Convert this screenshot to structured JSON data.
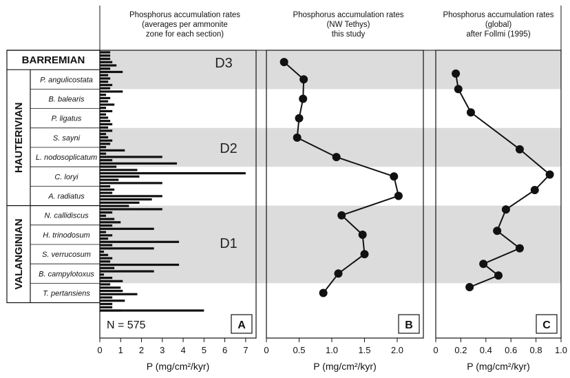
{
  "chart_data": [
    {
      "panel": "A",
      "type": "bar",
      "title_lines": [
        "Phosphorus accumulation rates",
        "(averages per ammonite",
        "zone for each section)"
      ],
      "xlabel": "P (mg/cm²/kyr)",
      "xlim": [
        0,
        7.5
      ],
      "xticks": [
        0,
        1,
        2,
        3,
        4,
        5,
        6,
        7
      ],
      "count_label": "N = 575",
      "panel_letter": "A",
      "values": [
        0.5,
        0.5,
        0.5,
        0.6,
        0.8,
        0.5,
        1.1,
        0.4,
        0.5,
        0.4,
        0.6,
        0.5,
        1.1,
        0.3,
        0.5,
        0.4,
        0.7,
        0.3,
        0.6,
        0.3,
        0.4,
        0.5,
        0.6,
        0.4,
        0.6,
        0.3,
        0.4,
        0.6,
        0.5,
        0.3,
        1.2,
        0.3,
        3.0,
        0.6,
        3.7,
        0.8,
        1.8,
        7.0,
        1.9,
        0.9,
        3.0,
        0.5,
        0.7,
        0.6,
        3.0,
        2.5,
        1.9,
        1.4,
        3.0,
        0.6,
        0.3,
        0.7,
        1.0,
        0.6,
        2.6,
        0.3,
        0.6,
        0.4,
        3.8,
        0.6,
        2.6,
        0.2,
        0.4,
        0.6,
        0.5,
        3.8,
        0.7,
        2.6,
        0.2,
        0.6,
        1.1,
        0.5,
        1.0,
        1.1,
        1.8,
        0.6,
        1.2,
        0.6,
        0.6,
        1.0,
        5.0
      ]
    },
    {
      "panel": "B",
      "type": "line",
      "title_lines": [
        "Phosphorus accumulation rates",
        "(NW Tethys)",
        "this study"
      ],
      "xlabel": "P (mg/cm²/kyr)",
      "xlim": [
        0,
        2.4
      ],
      "xticks": [
        "0",
        "0.5",
        "1.0",
        "1.5",
        "2.0"
      ],
      "panel_letter": "B",
      "y_zone": [
        "Barremian",
        "P. angulicostata",
        "B. balearis",
        "P. ligatus",
        "S. sayni",
        "L. nodosoplicatum",
        "C. loryi",
        "A. radiatus",
        "N. callidiscus",
        "H. trinodosum",
        "S. verrucosum",
        "B. campylotoxus",
        "T. pertansiens"
      ],
      "values": [
        0.27,
        0.57,
        0.56,
        0.5,
        0.47,
        1.07,
        1.95,
        2.02,
        1.15,
        1.47,
        1.5,
        1.1,
        0.87
      ]
    },
    {
      "panel": "C",
      "type": "line",
      "title_lines": [
        "Phosphorus accumulation rates",
        "(global)",
        "after Follmi (1995)"
      ],
      "xlabel": "P (mg/cm²/kyr)",
      "xlim": [
        0,
        1.0
      ],
      "xticks": [
        "0",
        "0.2",
        "0.4",
        "0.6",
        "0.8",
        "1.0"
      ],
      "panel_letter": "C",
      "y_zone": [
        "P. angulicostata",
        "B. balearis",
        "P. ligatus",
        "S. sayni",
        "C. loryi",
        "A. radiatus",
        "N. callidiscus",
        "H. trinodosum",
        "S. verrucosum",
        "B. campylotoxus",
        "B. campylotoxus (lower)",
        "T. pertansiens"
      ],
      "y_index": [
        1.2,
        2.0,
        3.2,
        5.1,
        6.4,
        7.2,
        8.2,
        9.3,
        10.2,
        11.0,
        11.6,
        12.2
      ],
      "values": [
        0.16,
        0.18,
        0.28,
        0.67,
        0.91,
        0.79,
        0.56,
        0.49,
        0.67,
        0.38,
        0.5,
        0.27
      ]
    }
  ],
  "stratigraphy": {
    "stages": [
      {
        "name": "BARREMIAN",
        "from": 0,
        "to": 1
      },
      {
        "name": "HAUTERIVIAN",
        "from": 1,
        "to": 8
      },
      {
        "name": "VALANGINIAN",
        "from": 8,
        "to": 13
      }
    ],
    "zones": [
      "P. angulicostata",
      "B. balearis",
      "P. ligatus",
      "S. sayni",
      "L. nodosoplicatum",
      "C. loryi",
      "A. radiatus",
      "N. callidiscus",
      "H. trinodosum",
      "S. verrucosum",
      "B. campylotoxus",
      "T. pertansiens"
    ],
    "intervals": [
      {
        "label": "D3",
        "from": 0,
        "to": 2
      },
      {
        "label": "D2",
        "from": 4,
        "to": 6
      },
      {
        "label": "D1",
        "from": 8,
        "to": 12
      }
    ]
  }
}
